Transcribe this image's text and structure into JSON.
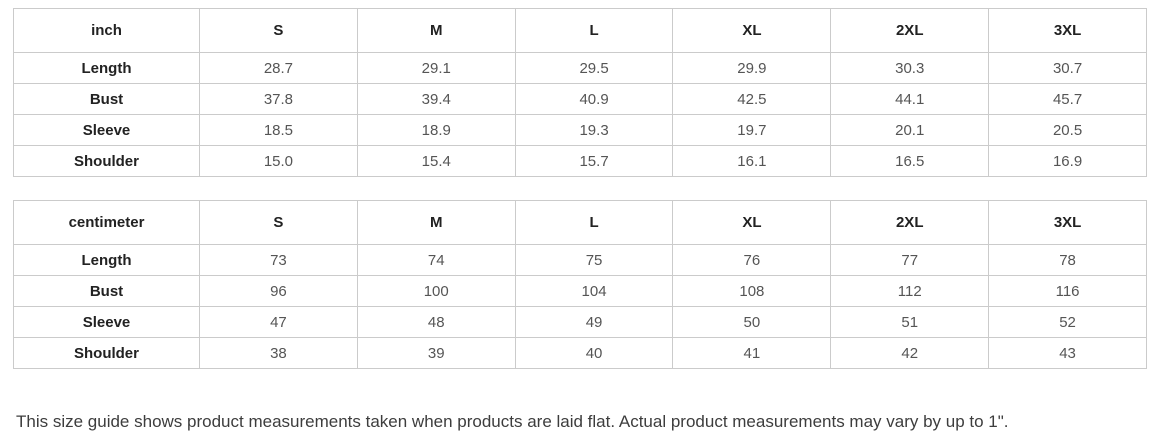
{
  "colors": {
    "background": "#ffffff",
    "border": "#cbcbcb",
    "header_text": "#222222",
    "value_text": "#555555",
    "note_text": "#3d3d3d"
  },
  "size_headers": [
    "S",
    "M",
    "L",
    "XL",
    "2XL",
    "3XL"
  ],
  "tables": [
    {
      "unit_label": "inch",
      "rows": [
        {
          "label": "Length",
          "values": [
            "28.7",
            "29.1",
            "29.5",
            "29.9",
            "30.3",
            "30.7"
          ]
        },
        {
          "label": "Bust",
          "values": [
            "37.8",
            "39.4",
            "40.9",
            "42.5",
            "44.1",
            "45.7"
          ]
        },
        {
          "label": "Sleeve",
          "values": [
            "18.5",
            "18.9",
            "19.3",
            "19.7",
            "20.1",
            "20.5"
          ]
        },
        {
          "label": "Shoulder",
          "values": [
            "15.0",
            "15.4",
            "15.7",
            "16.1",
            "16.5",
            "16.9"
          ]
        }
      ]
    },
    {
      "unit_label": "centimeter",
      "rows": [
        {
          "label": "Length",
          "values": [
            "73",
            "74",
            "75",
            "76",
            "77",
            "78"
          ]
        },
        {
          "label": "Bust",
          "values": [
            "96",
            "100",
            "104",
            "108",
            "112",
            "116"
          ]
        },
        {
          "label": "Sleeve",
          "values": [
            "47",
            "48",
            "49",
            "50",
            "51",
            "52"
          ]
        },
        {
          "label": "Shoulder",
          "values": [
            "38",
            "39",
            "40",
            "41",
            "42",
            "43"
          ]
        }
      ]
    }
  ],
  "footer_note": "This size guide shows product measurements taken when products are laid flat. Actual product measurements may vary by up to 1\"."
}
